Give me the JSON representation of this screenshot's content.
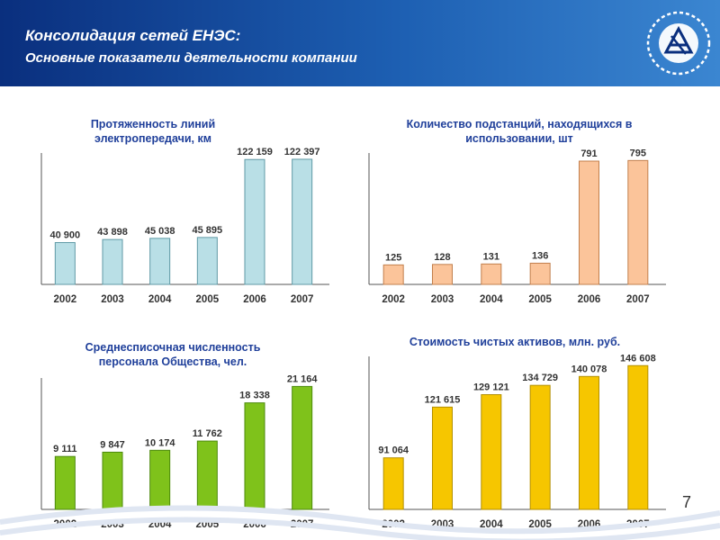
{
  "header": {
    "title": "Консолидация сетей ЕНЭС:",
    "subtitle": "Основные показатели деятельности компании"
  },
  "page_number": "7",
  "colors": {
    "header_start": "#0a2f7e",
    "header_end": "#3b86d1",
    "chart_title": "#1f3f9a"
  },
  "chart_data": [
    {
      "type": "bar",
      "title": "Протяженность линий электропередачи, км",
      "categories": [
        "2002",
        "2003",
        "2004",
        "2005",
        "2006",
        "2007"
      ],
      "values": [
        40900,
        43898,
        45038,
        45895,
        122159,
        122397
      ],
      "value_labels": [
        "40 900",
        "43 898",
        "45 038",
        "45 895",
        "122 159",
        "122 397"
      ],
      "ylim": [
        0,
        125000
      ],
      "color": "#b9dfe6",
      "stroke": "#5f9aa6",
      "grid": false
    },
    {
      "type": "bar",
      "title": "Количество подстанций, находящихся в использовании, шт",
      "categories": [
        "2002",
        "2003",
        "2004",
        "2005",
        "2006",
        "2007"
      ],
      "values": [
        125,
        128,
        131,
        136,
        791,
        795
      ],
      "value_labels": [
        "125",
        "128",
        "131",
        "136",
        "791",
        "795"
      ],
      "ylim": [
        0,
        820
      ],
      "color": "#fbc49a",
      "stroke": "#c27f4c",
      "grid": false
    },
    {
      "type": "bar",
      "title": "Среднесписочная численность персонала Общества, чел.",
      "categories": [
        "2002",
        "2003",
        "2004",
        "2005",
        "2006",
        "2007"
      ],
      "values": [
        9111,
        9847,
        10174,
        11762,
        18338,
        21164
      ],
      "value_labels": [
        "9 111",
        "9 847",
        "10 174",
        "11 762",
        "18 338",
        "21 164"
      ],
      "ylim": [
        0,
        22000
      ],
      "color": "#7fc21b",
      "stroke": "#4c8a0c",
      "grid": false
    },
    {
      "type": "bar",
      "title": "Стоимость чистых активов, млн. руб.",
      "categories": [
        "2002",
        "2003",
        "2004",
        "2005",
        "2006",
        "2007"
      ],
      "values": [
        91064,
        121615,
        129121,
        134729,
        140078,
        146608
      ],
      "value_labels": [
        "91 064",
        "121 615",
        "129 121",
        "134 729",
        "140 078",
        "146 608"
      ],
      "ylim": [
        60000,
        150000
      ],
      "color": "#f6c600",
      "stroke": "#b38f00",
      "grid": false
    }
  ]
}
